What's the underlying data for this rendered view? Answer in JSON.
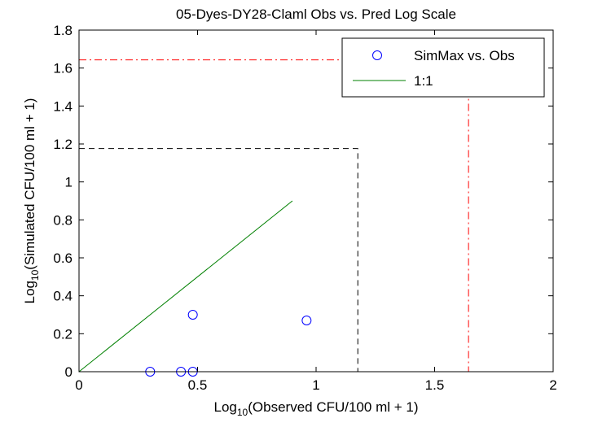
{
  "chart_data": {
    "type": "scatter",
    "title": "05-Dyes-DY28-Claml Obs vs. Pred Log Scale",
    "xlabel": {
      "prefix": "Log",
      "sub": "10",
      "suffix": "(Observed CFU/100 ml + 1)"
    },
    "ylabel": {
      "prefix": "Log",
      "sub": "10",
      "suffix": "(Simulated CFU/100 ml + 1)"
    },
    "xlim": [
      0,
      2
    ],
    "ylim": [
      0,
      1.8
    ],
    "xticks": [
      0,
      0.5,
      1,
      1.5,
      2
    ],
    "xtick_labels": [
      "0",
      "0.5",
      "1",
      "1.5",
      "2"
    ],
    "yticks": [
      0,
      0.2,
      0.4,
      0.6,
      0.8,
      1,
      1.2,
      1.4,
      1.6,
      1.8
    ],
    "ytick_labels": [
      "0",
      "0.2",
      "0.4",
      "0.6",
      "0.8",
      "1",
      "1.2",
      "1.4",
      "1.6",
      "1.8"
    ],
    "grid": false,
    "legend_position": "top-right",
    "series": [
      {
        "name": "SimMax vs. Obs",
        "kind": "scatter",
        "marker": "open-circle",
        "color": "#0000ff",
        "points": [
          [
            0.3,
            0.0
          ],
          [
            0.43,
            0.0
          ],
          [
            0.48,
            0.0
          ],
          [
            0.48,
            0.3
          ],
          [
            0.96,
            0.27
          ]
        ]
      },
      {
        "name": "1:1",
        "kind": "line",
        "color": "#008000",
        "points": [
          [
            0,
            0
          ],
          [
            0.9,
            0.9
          ]
        ]
      }
    ],
    "reference_lines": [
      {
        "style": "dashed",
        "color": "#000000",
        "points": [
          [
            0,
            1.176
          ],
          [
            1.176,
            1.176
          ],
          [
            1.176,
            0
          ]
        ]
      },
      {
        "style": "dash-dot",
        "color": "#ff0000",
        "points": [
          [
            0,
            1.643
          ],
          [
            1.643,
            1.643
          ],
          [
            1.643,
            0
          ]
        ]
      }
    ]
  }
}
